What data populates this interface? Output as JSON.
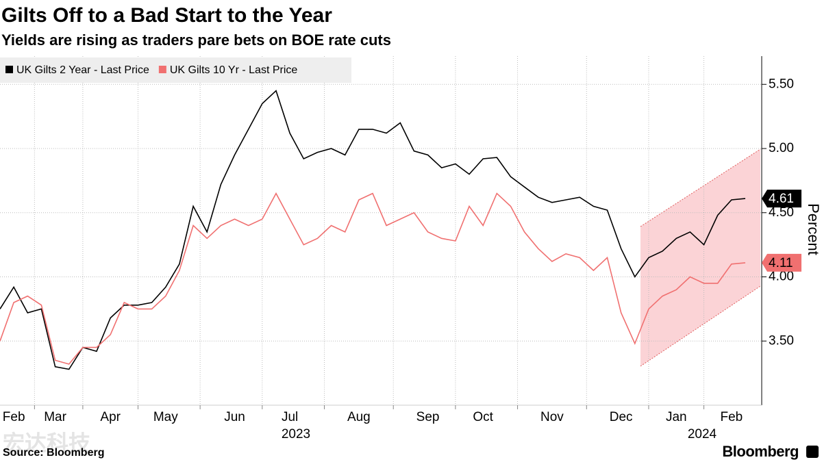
{
  "chart_data": {
    "type": "line",
    "title": "Gilts Off to a Bad Start to the Year",
    "subtitle": "Yields are rising as traders pare bets on BOE rate cuts",
    "y_axis_label": "Percent",
    "source": "Source: Bloomberg",
    "brand": "Bloomberg",
    "watermark": "宏达科技",
    "x_group_labels": [
      "2023",
      "2024"
    ],
    "categories": [
      null,
      "Feb",
      null,
      null,
      "Mar",
      null,
      null,
      null,
      "Apr",
      null,
      null,
      null,
      "May",
      null,
      null,
      null,
      null,
      "Jun",
      null,
      null,
      null,
      "Jul",
      null,
      null,
      null,
      null,
      "Aug",
      null,
      null,
      null,
      null,
      "Sep",
      null,
      null,
      null,
      "Oct",
      null,
      null,
      null,
      null,
      "Nov",
      null,
      null,
      null,
      null,
      "Dec",
      null,
      null,
      null,
      "Jan",
      null,
      null,
      null,
      "Feb",
      null
    ],
    "series": [
      {
        "name": "UK Gilts 2 Year - Last Price",
        "color": "#000000",
        "last_label": "4.61",
        "values": [
          3.75,
          3.92,
          3.72,
          3.75,
          3.3,
          3.28,
          3.45,
          3.42,
          3.68,
          3.78,
          3.78,
          3.8,
          3.92,
          4.1,
          4.55,
          4.35,
          4.72,
          4.95,
          5.15,
          5.35,
          5.45,
          5.12,
          4.92,
          4.97,
          5.0,
          4.95,
          5.15,
          5.15,
          5.12,
          5.2,
          4.98,
          4.95,
          4.85,
          4.88,
          4.8,
          4.92,
          4.93,
          4.78,
          4.7,
          4.62,
          4.58,
          4.6,
          4.62,
          4.55,
          4.52,
          4.22,
          4.0,
          4.15,
          4.2,
          4.3,
          4.35,
          4.25,
          4.48,
          4.6,
          4.61
        ]
      },
      {
        "name": "UK Gilts 10 Yr - Last Price",
        "color": "#f07070",
        "last_label": "4.11",
        "values": [
          3.5,
          3.8,
          3.85,
          3.78,
          3.35,
          3.32,
          3.45,
          3.45,
          3.55,
          3.8,
          3.75,
          3.75,
          3.85,
          4.05,
          4.4,
          4.3,
          4.4,
          4.45,
          4.4,
          4.45,
          4.65,
          4.45,
          4.25,
          4.3,
          4.4,
          4.35,
          4.6,
          4.65,
          4.4,
          4.45,
          4.5,
          4.35,
          4.3,
          4.28,
          4.55,
          4.4,
          4.65,
          4.55,
          4.35,
          4.22,
          4.12,
          4.18,
          4.15,
          4.05,
          4.15,
          3.72,
          3.48,
          3.75,
          3.85,
          3.9,
          4.0,
          3.95,
          3.95,
          4.1,
          4.11
        ]
      }
    ],
    "ylim": [
      3.0,
      5.72
    ],
    "yticks": [
      {
        "value": 3.5,
        "label": "3.50"
      },
      {
        "value": 4.0,
        "label": "4.00"
      },
      {
        "value": 4.5,
        "label": "4.50"
      },
      {
        "value": 5.0,
        "label": "5.00"
      },
      {
        "value": 5.5,
        "label": "5.50"
      }
    ],
    "grid": true,
    "legend": "top-left"
  }
}
